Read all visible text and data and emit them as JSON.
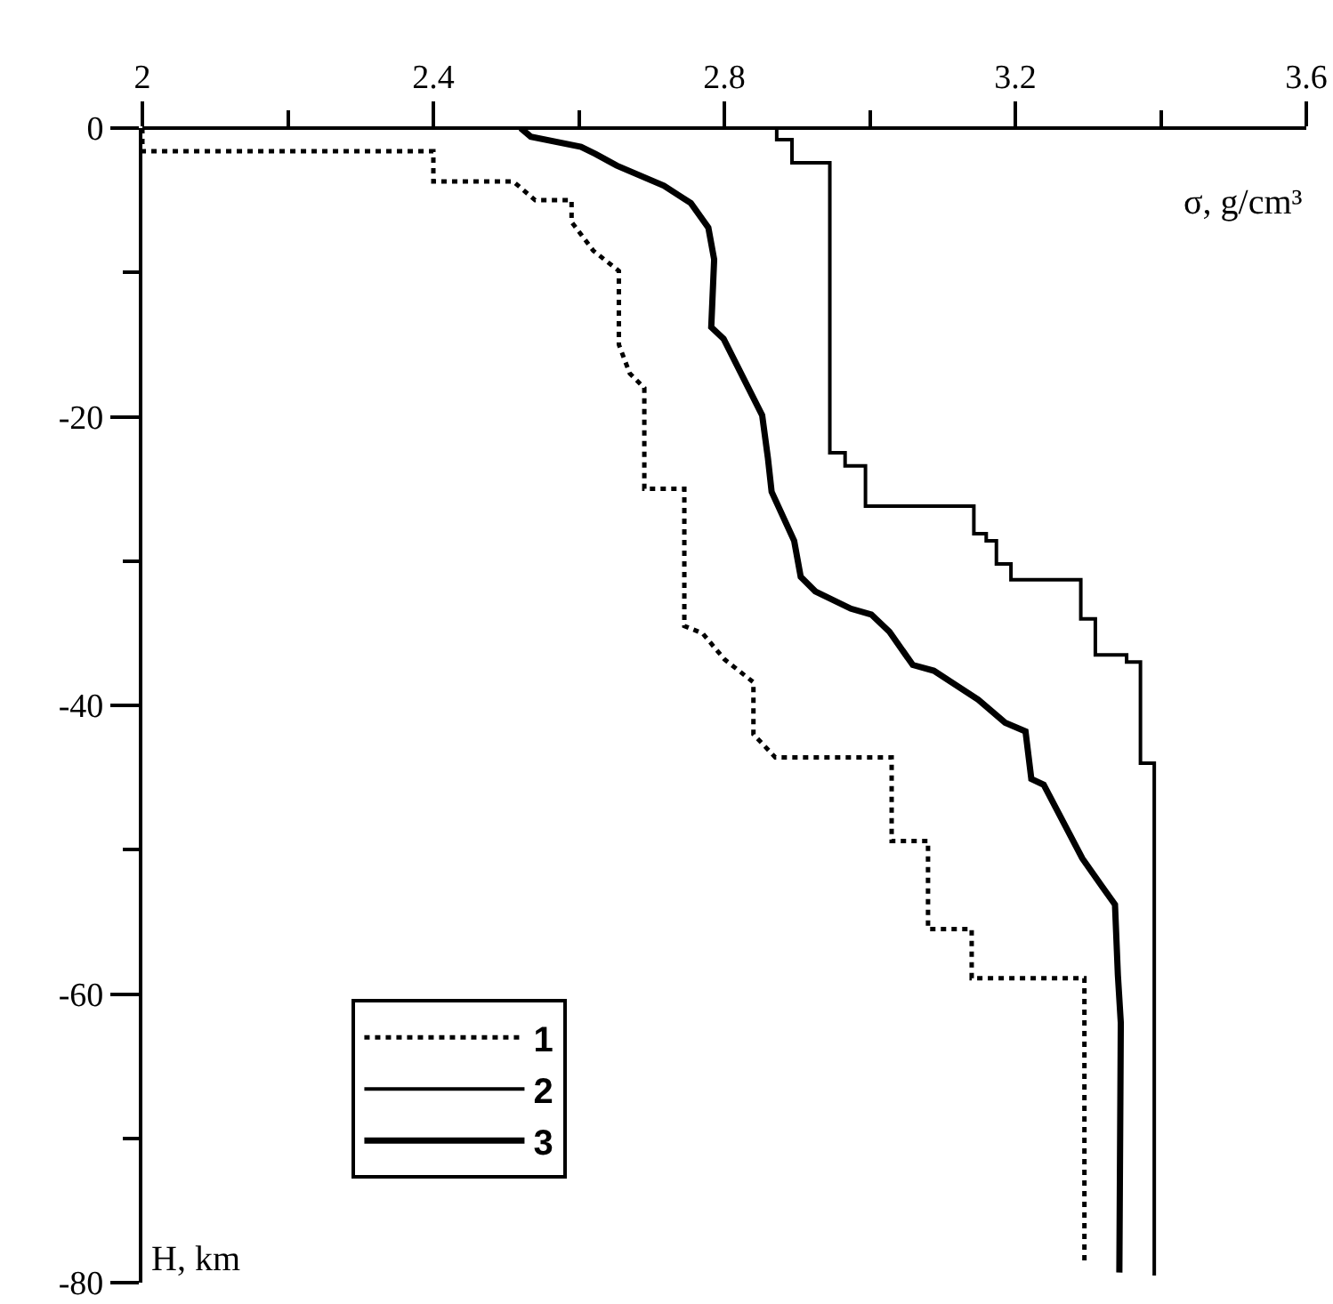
{
  "chart_data": {
    "type": "line",
    "xlabel": "σ, g/cm³",
    "ylabel": "H, km",
    "xlim": [
      2,
      3.6
    ],
    "xticks": [
      2,
      {
        "value": 2.2,
        "label": null
      },
      2.4,
      {
        "value": 2.6,
        "label": null
      },
      2.8,
      {
        "value": 3.0,
        "label": null
      },
      3.2,
      {
        "value": 3.4,
        "label": null
      },
      3.6
    ],
    "ylim": [
      -80,
      0
    ],
    "yticks": [
      0,
      {
        "value": -10,
        "label": null
      },
      -20,
      {
        "value": -30,
        "label": null
      },
      -40,
      {
        "value": -50,
        "label": null
      },
      -60,
      {
        "value": -70,
        "label": null
      },
      -80
    ],
    "grid": false,
    "legend": "bottom left",
    "marker": "none",
    "series": [
      {
        "name": "1",
        "color": "#000000",
        "line_style": "dotted",
        "x": [
          2.0,
          2.0,
          2.4,
          2.4,
          2.51,
          2.54,
          2.59,
          2.59,
          2.62,
          2.655,
          2.655,
          2.67,
          2.69,
          2.69,
          2.745,
          2.745,
          2.77,
          2.8,
          2.84,
          2.84,
          2.87,
          3.03,
          3.03,
          3.08,
          3.08,
          3.14,
          3.14,
          3.295,
          3.295
        ],
        "values": [
          0,
          -1.6,
          -1.6,
          -3.7,
          -3.7,
          -5.0,
          -5.0,
          -6.5,
          -8.5,
          -9.9,
          -15,
          -17,
          -18,
          -25,
          -25,
          -34.5,
          -35,
          -36.8,
          -38.4,
          -42,
          -43.6,
          -43.6,
          -49.4,
          -49.4,
          -55.5,
          -55.5,
          -58.9,
          -58.9,
          -78.5
        ]
      },
      {
        "name": "2",
        "color": "#000000",
        "line_style": "solid",
        "x": [
          2.872,
          2.872,
          2.893,
          2.893,
          2.945,
          2.945,
          2.966,
          2.966,
          2.994,
          2.994,
          3.143,
          3.143,
          3.16,
          3.16,
          3.174,
          3.174,
          3.194,
          3.194,
          3.29,
          3.29,
          3.31,
          3.31,
          3.353,
          3.353,
          3.372,
          3.372,
          3.391,
          3.391
        ],
        "values": [
          0,
          -0.8,
          -0.8,
          -2.4,
          -2.4,
          -22.5,
          -22.5,
          -23.4,
          -23.4,
          -26.2,
          -26.2,
          -28.1,
          -28.1,
          -28.6,
          -28.6,
          -30.2,
          -30.2,
          -31.3,
          -31.3,
          -34.0,
          -34.0,
          -36.5,
          -36.5,
          -37.0,
          -37.0,
          -44.0,
          -44.0,
          -79.5
        ]
      },
      {
        "name": "3",
        "color": "#000000",
        "line_style": "solid",
        "x": [
          2.52,
          2.534,
          2.603,
          2.623,
          2.652,
          2.717,
          2.754,
          2.778,
          2.786,
          2.782,
          2.799,
          2.852,
          2.86,
          2.865,
          2.896,
          2.905,
          2.925,
          2.974,
          3.002,
          3.027,
          3.059,
          3.088,
          3.149,
          3.186,
          3.214,
          3.222,
          3.239,
          3.292,
          3.32,
          3.337,
          3.341,
          3.345,
          3.343
        ],
        "values": [
          0,
          -0.6,
          -1.3,
          -1.8,
          -2.6,
          -4.0,
          -5.2,
          -6.9,
          -9.1,
          -13.8,
          -14.6,
          -19.9,
          -22.9,
          -25.2,
          -28.6,
          -31.1,
          -32.1,
          -33.3,
          -33.7,
          -34.9,
          -37.2,
          -37.6,
          -39.6,
          -41.2,
          -41.8,
          -45.1,
          -45.5,
          -50.6,
          -52.6,
          -53.8,
          -58.7,
          -62,
          -79.3
        ]
      }
    ]
  }
}
